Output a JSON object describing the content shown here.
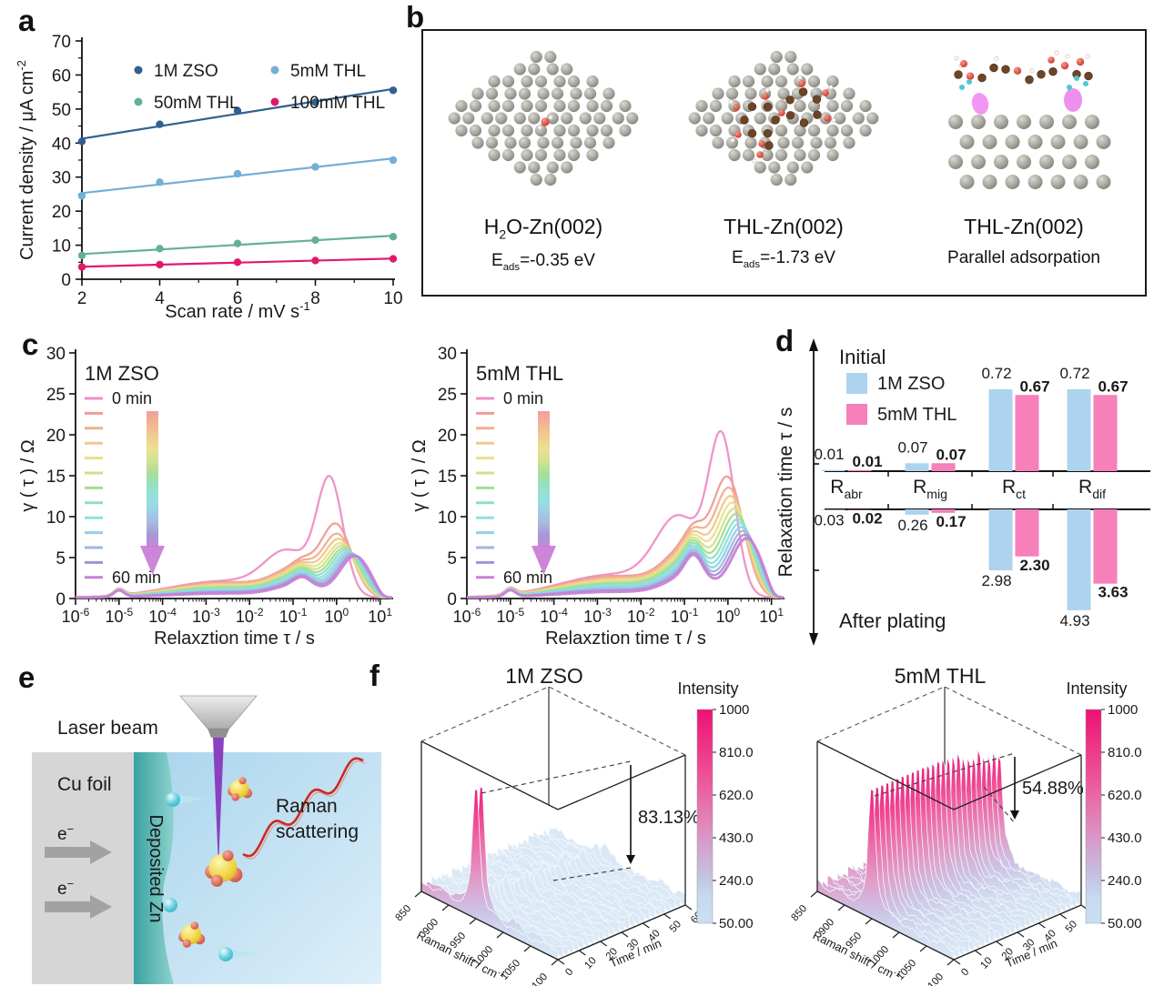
{
  "figure": {
    "panel_letters": {
      "a": "a",
      "b": "b",
      "c": "c",
      "d": "d",
      "e": "e",
      "f": "f"
    }
  },
  "chart_data": [
    {
      "panel": "a",
      "type": "scatter",
      "xlabel": "Scan rate / mV s",
      "xlabel_sup": "-1",
      "ylabel": "Current density / μA cm",
      "ylabel_sup": "-2",
      "xticks": [
        2,
        4,
        6,
        8,
        10
      ],
      "yticks": [
        0,
        10,
        20,
        30,
        40,
        50,
        60,
        70
      ],
      "ylim": [
        0,
        70
      ],
      "xlim": [
        2,
        10
      ],
      "series": [
        {
          "name": "1M ZSO",
          "color": "#31608f",
          "x": [
            2,
            4,
            6,
            8,
            10
          ],
          "y": [
            40.5,
            45.5,
            49.5,
            52.0,
            55.5
          ]
        },
        {
          "name": "5mM THL",
          "color": "#72aed6",
          "x": [
            2,
            4,
            6,
            8,
            10
          ],
          "y": [
            24.5,
            28.5,
            31.0,
            33.0,
            35.0
          ]
        },
        {
          "name": "50mM THL",
          "color": "#63b192",
          "x": [
            2,
            4,
            6,
            8,
            10
          ],
          "y": [
            7.0,
            9.0,
            10.5,
            11.5,
            12.5
          ]
        },
        {
          "name": "100mM THL",
          "color": "#e1196e",
          "x": [
            2,
            4,
            6,
            8,
            10
          ],
          "y": [
            3.6,
            4.3,
            5.0,
            5.5,
            6.0
          ]
        }
      ]
    },
    {
      "panel": "c",
      "type": "line",
      "xlabel": "Relaxztion time τ / s",
      "ylabel": "γ ( τ ) / Ω",
      "ylim": [
        0,
        30
      ],
      "yticks": [
        0,
        5,
        10,
        15,
        20,
        25,
        30
      ],
      "xtick_exponents": [
        -6,
        -5,
        -4,
        -3,
        -2,
        -1,
        0,
        1
      ],
      "legend_first": "0 min",
      "legend_last": "60 min",
      "curve_colors": [
        "#ee8fc6",
        "#ef9b97",
        "#f2af8d",
        "#eec88d",
        "#ebdf8b",
        "#cfe08d",
        "#a4dd90",
        "#8fdfc2",
        "#8fdfdf",
        "#95cfe6",
        "#a2b6dd",
        "#a391d5",
        "#c97fd6"
      ],
      "plots": [
        {
          "title": "1M ZSO",
          "c0": -0.15,
          "shoulder0": 4.8,
          "shelf0": 2.0,
          "bump3": 1.0,
          "peak_heights": [
            13.7,
            8.1,
            7.0,
            6.5,
            6.1,
            5.9,
            5.7,
            5.55,
            5.4,
            5.3,
            5.2,
            5.1,
            5.0
          ]
        },
        {
          "title": "5mM THL",
          "c0": -0.14,
          "shoulder0": 8.6,
          "shelf0": 2.8,
          "bump3": 2.6,
          "peak_heights": [
            18.4,
            13.2,
            12.1,
            11.3,
            10.7,
            10.1,
            9.6,
            9.1,
            8.7,
            8.3,
            7.9,
            7.5,
            7.1
          ]
        }
      ]
    },
    {
      "panel": "d",
      "type": "bar-diverging",
      "ylabel": "Relaxation time τ / s",
      "top_label": "Initial",
      "bottom_label": "After plating",
      "legend": [
        {
          "name": "1M ZSO",
          "color": "#aed3ee",
          "value_color": "#8fc0e2"
        },
        {
          "name": "5mM THL",
          "color": "#f77fba",
          "value_color": "#c2185b"
        }
      ],
      "categories": [
        {
          "base": "R",
          "sub": "abr"
        },
        {
          "base": "R",
          "sub": "mig"
        },
        {
          "base": "R",
          "sub": "ct"
        },
        {
          "base": "R",
          "sub": "dif"
        }
      ],
      "initial_numeric": {
        "zso": [
          0.01,
          0.07,
          0.72,
          0.72
        ],
        "thl": [
          0.01,
          0.07,
          0.67,
          0.67
        ]
      },
      "after_numeric": {
        "zso": [
          0.03,
          0.26,
          2.98,
          4.93
        ],
        "thl": [
          0.02,
          0.17,
          2.3,
          3.63
        ]
      },
      "initial_labels": [
        [
          "0.01",
          "0.01"
        ],
        [
          "0.07",
          "0.07"
        ],
        [
          "0.72",
          "0.67"
        ],
        [
          "0.72",
          "0.67"
        ]
      ],
      "after_labels": [
        [
          "0.03",
          "0.02"
        ],
        [
          "0.26",
          "0.17"
        ],
        [
          "2.98",
          "2.30"
        ],
        [
          "4.93",
          "3.63"
        ]
      ]
    },
    {
      "panel": "f",
      "type": "surface3d",
      "colorbar_title": "Intensity",
      "colorbar_ticks": [
        "1000",
        "810.0",
        "620.0",
        "430.0",
        "240.0",
        "50.00"
      ],
      "xlabel": "Raman shift / cm",
      "xlabel_sup": "-1",
      "raman_ticks": [
        "850",
        "900",
        "950",
        "1000",
        "1050",
        "1100"
      ],
      "time_label": "Time / min",
      "time_ticks": [
        "0",
        "10",
        "20",
        "30",
        "40",
        "50",
        "60"
      ],
      "plots": [
        {
          "title": "1M ZSO",
          "annotation": "83.13%",
          "decay": "zso"
        },
        {
          "title": "5mM THL",
          "annotation": "54.88%",
          "decay": "thl"
        }
      ]
    }
  ],
  "panel_b": {
    "items": [
      {
        "kind": "top-water",
        "title_parts": [
          {
            "t": "H"
          },
          {
            "t": "2",
            "sub": true
          },
          {
            "t": "O-Zn(002)"
          }
        ],
        "caption_parts": [
          {
            "t": "E"
          },
          {
            "t": "ads",
            "sub": true
          },
          {
            "t": "=-0.35 eV"
          }
        ]
      },
      {
        "kind": "top-thl",
        "title_parts": [
          {
            "t": "THL-Zn(002)"
          }
        ],
        "caption_parts": [
          {
            "t": "E"
          },
          {
            "t": "ads",
            "sub": true
          },
          {
            "t": "=-1.73 eV"
          }
        ]
      },
      {
        "kind": "side-thl",
        "title_parts": [
          {
            "t": "THL-Zn(002)"
          }
        ],
        "caption_parts": [
          {
            "t": "Parallel adsorpation"
          }
        ]
      }
    ]
  },
  "panel_e": {
    "labels": {
      "laser": "Laser beam",
      "cu": "Cu foil",
      "zn": "Deposited Zn",
      "raman1": "Raman",
      "raman2": "scattering",
      "electron_base": "e",
      "electron_sup": "−"
    }
  }
}
